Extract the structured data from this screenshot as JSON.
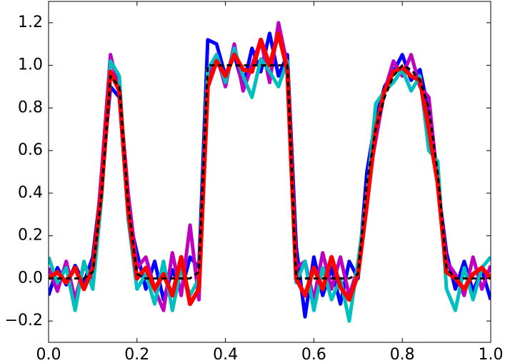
{
  "chart_data": {
    "type": "line",
    "x": [
      0,
      0.02,
      0.04,
      0.06,
      0.08,
      0.1,
      0.12,
      0.14,
      0.16,
      0.18,
      0.2,
      0.22,
      0.24,
      0.26,
      0.28,
      0.3,
      0.32,
      0.34,
      0.36,
      0.38,
      0.4,
      0.42,
      0.44,
      0.46,
      0.48,
      0.5,
      0.52,
      0.54,
      0.56,
      0.58,
      0.6,
      0.62,
      0.64,
      0.66,
      0.68,
      0.7,
      0.72,
      0.74,
      0.76,
      0.78,
      0.8,
      0.82,
      0.84,
      0.86,
      0.88,
      0.9,
      0.92,
      0.94,
      0.96,
      0.98,
      1.0
    ],
    "series": [
      {
        "color": "#0000ff",
        "linestyle": "solid",
        "values": [
          -0.08,
          0.05,
          -0.03,
          0.06,
          -0.02,
          0.1,
          0.45,
          0.9,
          0.85,
          0.3,
          0.12,
          -0.05,
          0.08,
          -0.1,
          0.04,
          -0.06,
          0.1,
          0.05,
          1.12,
          1.1,
          0.95,
          1.05,
          0.9,
          1.08,
          0.97,
          1.15,
          0.95,
          1.05,
          0.15,
          -0.18,
          0.1,
          -0.08,
          0.05,
          -0.12,
          0.08,
          0.0,
          0.5,
          0.75,
          0.9,
          0.97,
          1.05,
          0.93,
          0.98,
          0.78,
          0.45,
          0.12,
          -0.05,
          0.08,
          -0.06,
          0.04,
          -0.1
        ]
      },
      {
        "color": "#bf00bf",
        "linestyle": "solid",
        "values": [
          0.05,
          -0.06,
          0.08,
          -0.1,
          0.06,
          0.0,
          0.5,
          1.05,
          0.88,
          0.4,
          0.05,
          0.1,
          -0.05,
          -0.15,
          0.12,
          -0.08,
          0.25,
          -0.1,
          0.95,
          1.05,
          0.9,
          1.1,
          0.88,
          1.0,
          1.12,
          0.92,
          1.2,
          1.0,
          0.05,
          0.08,
          -0.1,
          0.12,
          -0.05,
          0.1,
          -0.08,
          0.05,
          0.42,
          0.65,
          0.88,
          1.02,
          0.95,
          1.05,
          0.9,
          0.85,
          0.45,
          0.08,
          0.02,
          -0.08,
          0.1,
          -0.05,
          0.06
        ]
      },
      {
        "color": "#00bfbf",
        "linestyle": "solid",
        "values": [
          0.1,
          -0.02,
          0.05,
          -0.15,
          0.08,
          -0.05,
          0.38,
          1.02,
          0.95,
          0.28,
          -0.05,
          0.02,
          -0.12,
          0.08,
          -0.15,
          0.05,
          -0.08,
          0.0,
          0.98,
          1.05,
          0.92,
          1.08,
          0.95,
          0.85,
          1.03,
          0.97,
          0.9,
          1.02,
          -0.02,
          0.08,
          -0.15,
          0.05,
          -0.1,
          0.0,
          -0.2,
          0.08,
          0.38,
          0.82,
          0.88,
          0.92,
          0.98,
          0.88,
          0.95,
          0.6,
          0.55,
          -0.05,
          -0.15,
          0.05,
          -0.1,
          0.05,
          0.1
        ]
      },
      {
        "color": "#ff0000",
        "linestyle": "solid",
        "values": [
          0.0,
          0.03,
          -0.02,
          0.05,
          -0.05,
          0.05,
          0.42,
          0.97,
          0.88,
          0.32,
          0.0,
          0.05,
          -0.05,
          0.02,
          -0.08,
          0.1,
          -0.12,
          -0.05,
          0.9,
          1.02,
          0.95,
          1.05,
          0.98,
          0.97,
          1.12,
          1.0,
          1.15,
          0.98,
          0.0,
          -0.08,
          0.05,
          -0.05,
          0.1,
          -0.04,
          -0.1,
          0.02,
          0.35,
          0.7,
          0.88,
          0.97,
          0.99,
          0.95,
          0.93,
          0.7,
          0.45,
          0.03,
          0.0,
          -0.05,
          0.02,
          0.05,
          0.0
        ]
      },
      {
        "color": "#000000",
        "linestyle": "dashed",
        "values": [
          0,
          0,
          0,
          0,
          0,
          0.03,
          0.4,
          0.95,
          0.9,
          0.35,
          0.02,
          0,
          0,
          0,
          0,
          0,
          0,
          0.03,
          1.0,
          1.0,
          1.0,
          1.0,
          1.0,
          1.0,
          1.0,
          1.0,
          1.0,
          1.0,
          0,
          0,
          0,
          0,
          0,
          0,
          0,
          0.02,
          0.45,
          0.7,
          0.85,
          0.95,
          1.0,
          0.98,
          0.93,
          0.8,
          0.5,
          0.05,
          0,
          0,
          0,
          0,
          0
        ]
      }
    ],
    "xlim": [
      0,
      1.0
    ],
    "xticks": [
      {
        "value": 0,
        "label": "0.0"
      },
      0.2,
      0.4,
      0.6,
      0.8,
      {
        "value": 1.0,
        "label": "1.0"
      }
    ],
    "ylim": [
      -0.3,
      1.3
    ],
    "yticks": [
      {
        "value": -0.2,
        "label": "−0.2"
      },
      {
        "value": 0,
        "label": "0.0"
      },
      0.2,
      0.4,
      0.6,
      0.8,
      {
        "value": 1.0,
        "label": "1.0"
      },
      1.2
    ],
    "grid": false
  }
}
